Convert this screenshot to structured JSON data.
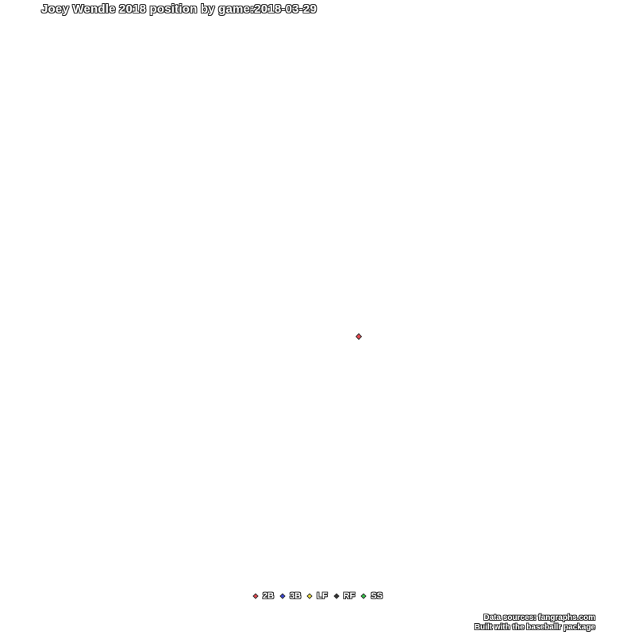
{
  "chart_data": {
    "type": "scatter",
    "title": "Joey Wendle 2018 position by game:2018-03-29",
    "xlabel": "",
    "ylabel": "",
    "grid": false,
    "legend_position": "bottom",
    "series": [
      {
        "name": "2B",
        "color": "#e8474f",
        "points": [
          {
            "x": 0.5,
            "y": 0.5
          }
        ]
      },
      {
        "name": "3B",
        "color": "#3a45d9",
        "points": []
      },
      {
        "name": "LF",
        "color": "#f2e13a",
        "points": []
      },
      {
        "name": "RF",
        "color": "#333333",
        "points": []
      },
      {
        "name": "SS",
        "color": "#35c94a",
        "points": []
      }
    ],
    "caption_lines": [
      "Data sources: fangraphs.com",
      "Built with the baseballr package"
    ]
  }
}
